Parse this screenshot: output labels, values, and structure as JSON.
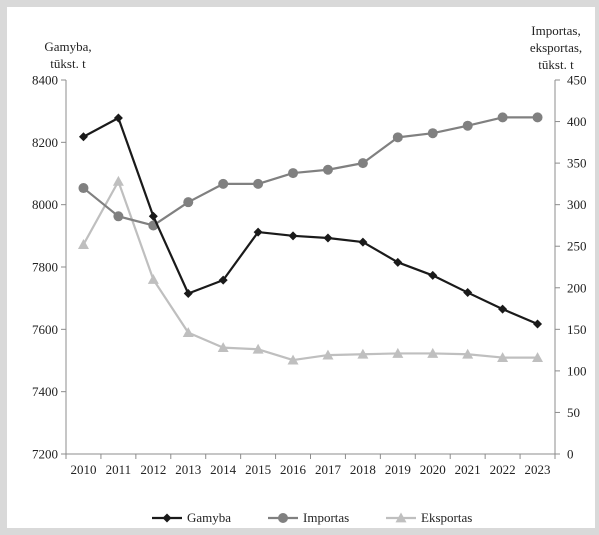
{
  "chart_data": {
    "type": "line",
    "x": [
      "2010",
      "2011",
      "2012",
      "2013",
      "2014",
      "2015",
      "2016",
      "2017",
      "2018",
      "2019",
      "2020",
      "2021",
      "2022",
      "2023"
    ],
    "ylabel_left": [
      "Gamyba,",
      "tūkst. t"
    ],
    "ylabel_right": [
      "Importas,",
      "eksportas,",
      "tūkst. t"
    ],
    "ylim_left": [
      7200,
      8400
    ],
    "ylim_right": [
      0,
      450
    ],
    "yticks_left": [
      7200,
      7400,
      7600,
      7800,
      8000,
      8200,
      8400
    ],
    "yticks_right": [
      0,
      50,
      100,
      150,
      200,
      250,
      300,
      350,
      400,
      450
    ],
    "grid": false,
    "legend_position": "bottom",
    "series": [
      {
        "name": "Gamyba",
        "axis": "left",
        "marker": "diamond",
        "color": "#1a1a1a",
        "values": [
          8218,
          8278,
          7963,
          7715,
          7758,
          7912,
          7900,
          7893,
          7880,
          7815,
          7773,
          7718,
          7665,
          7617
        ]
      },
      {
        "name": "Importas",
        "axis": "right",
        "marker": "circle",
        "color": "#808080",
        "values": [
          320,
          286,
          275,
          303,
          325,
          325,
          338,
          342,
          350,
          381,
          386,
          395,
          405,
          405
        ]
      },
      {
        "name": "Eksportas",
        "axis": "right",
        "marker": "triangle",
        "color": "#bfbfbf",
        "values": [
          252,
          328,
          210,
          146,
          128,
          126,
          113,
          119,
          120,
          121,
          121,
          120,
          116,
          116
        ]
      }
    ]
  }
}
